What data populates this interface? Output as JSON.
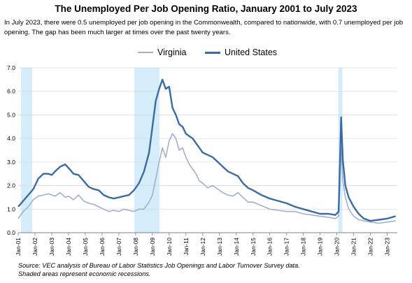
{
  "chart_data": {
    "type": "line",
    "title": "The Unemployed Per Job Opening Ratio, January 2001 to July 2023",
    "subtitle": "In July 2023, there were 0.5 unemployed per job opening in the Commonwealth, compared to nationwide, with 0.7 unemployed per job opening. The gap has been much larger at times over the past twenty years.",
    "footnote_lines": [
      "Source: VEC analysis of Bureau of Labor Statistics Job Openings and Labor Turnover Survey data.",
      "Shaded areas represent economic recessions."
    ],
    "ylim": [
      0,
      7
    ],
    "yticks": [
      "0.0",
      "1.0",
      "2.0",
      "3.0",
      "4.0",
      "5.0",
      "6.0",
      "7.0"
    ],
    "xlim": [
      2001.0,
      2023.6
    ],
    "xtick_labels": [
      "Jan-01",
      "Jan-02",
      "Jan-03",
      "Jan-04",
      "Jan-05",
      "Jan-06",
      "Jan-07",
      "Jan-08",
      "Jan-09",
      "Jan-10",
      "Jan-11",
      "Jan-12",
      "Jan-13",
      "Jan-14",
      "Jan-15",
      "Jan-16",
      "Jan-17",
      "Jan-18",
      "Jan-19",
      "Jan-20",
      "Jan-21",
      "Jan-22",
      "Jan-23"
    ],
    "recessions": [
      [
        2001.17,
        2001.83
      ],
      [
        2007.92,
        2009.42
      ],
      [
        2020.08,
        2020.33
      ]
    ],
    "grid": "horizontal",
    "legend_position": "top",
    "series": [
      {
        "name": "Virginia",
        "color": "#9fb0cf",
        "x": [
          2001.0,
          2001.3,
          2001.6,
          2001.9,
          2002.2,
          2002.5,
          2002.8,
          2003.0,
          2003.2,
          2003.5,
          2003.8,
          2004.0,
          2004.3,
          2004.6,
          2004.9,
          2005.2,
          2005.5,
          2005.8,
          2006.1,
          2006.4,
          2006.7,
          2007.0,
          2007.3,
          2007.6,
          2007.9,
          2008.2,
          2008.5,
          2008.8,
          2009.0,
          2009.2,
          2009.4,
          2009.6,
          2009.8,
          2010.0,
          2010.2,
          2010.4,
          2010.6,
          2010.8,
          2011.0,
          2011.2,
          2011.4,
          2011.6,
          2011.8,
          2012.0,
          2012.3,
          2012.6,
          2012.9,
          2013.2,
          2013.5,
          2013.8,
          2014.1,
          2014.4,
          2014.7,
          2015.0,
          2015.5,
          2016.0,
          2016.5,
          2017.0,
          2017.5,
          2018.0,
          2018.5,
          2019.0,
          2019.5,
          2019.9,
          2020.1,
          2020.25,
          2020.35,
          2020.5,
          2020.7,
          2021.0,
          2021.3,
          2021.6,
          2022.0,
          2022.5,
          2023.0,
          2023.5
        ],
        "values": [
          0.6,
          0.9,
          1.1,
          1.4,
          1.55,
          1.6,
          1.65,
          1.6,
          1.55,
          1.7,
          1.5,
          1.55,
          1.4,
          1.6,
          1.35,
          1.25,
          1.2,
          1.1,
          1.0,
          0.9,
          0.95,
          0.9,
          1.0,
          0.95,
          0.9,
          1.0,
          1.0,
          1.3,
          1.6,
          2.3,
          3.0,
          3.6,
          3.2,
          3.9,
          4.2,
          4.0,
          3.5,
          3.6,
          3.2,
          2.9,
          2.7,
          2.5,
          2.2,
          2.1,
          1.9,
          2.0,
          1.85,
          1.7,
          1.6,
          1.55,
          1.7,
          1.5,
          1.3,
          1.3,
          1.15,
          1.0,
          0.95,
          0.9,
          0.9,
          0.8,
          0.75,
          0.7,
          0.65,
          0.6,
          0.7,
          3.6,
          2.2,
          1.5,
          1.0,
          0.7,
          0.55,
          0.5,
          0.45,
          0.4,
          0.45,
          0.5
        ]
      },
      {
        "name": "United States",
        "color": "#3b6ba5",
        "x": [
          2001.0,
          2001.3,
          2001.6,
          2001.9,
          2002.2,
          2002.5,
          2002.8,
          2003.0,
          2003.2,
          2003.5,
          2003.8,
          2004.0,
          2004.3,
          2004.6,
          2004.9,
          2005.2,
          2005.5,
          2005.8,
          2006.1,
          2006.4,
          2006.7,
          2007.0,
          2007.3,
          2007.6,
          2007.9,
          2008.2,
          2008.5,
          2008.8,
          2009.0,
          2009.2,
          2009.4,
          2009.6,
          2009.8,
          2010.0,
          2010.2,
          2010.4,
          2010.6,
          2010.8,
          2011.0,
          2011.2,
          2011.4,
          2011.6,
          2011.8,
          2012.0,
          2012.3,
          2012.6,
          2012.9,
          2013.2,
          2013.5,
          2013.8,
          2014.1,
          2014.4,
          2014.7,
          2015.0,
          2015.5,
          2016.0,
          2016.5,
          2017.0,
          2017.5,
          2018.0,
          2018.5,
          2019.0,
          2019.5,
          2019.9,
          2020.1,
          2020.25,
          2020.35,
          2020.5,
          2020.7,
          2021.0,
          2021.3,
          2021.6,
          2022.0,
          2022.5,
          2023.0,
          2023.5
        ],
        "values": [
          1.1,
          1.35,
          1.6,
          1.85,
          2.3,
          2.5,
          2.5,
          2.45,
          2.6,
          2.8,
          2.9,
          2.75,
          2.5,
          2.45,
          2.2,
          1.95,
          1.85,
          1.8,
          1.6,
          1.5,
          1.45,
          1.5,
          1.55,
          1.6,
          1.8,
          2.1,
          2.6,
          3.4,
          4.5,
          5.6,
          6.1,
          6.5,
          6.1,
          6.2,
          5.3,
          5.0,
          4.6,
          4.5,
          4.2,
          4.1,
          4.0,
          3.8,
          3.6,
          3.4,
          3.3,
          3.2,
          3.0,
          2.8,
          2.6,
          2.5,
          2.4,
          2.1,
          1.9,
          1.8,
          1.6,
          1.45,
          1.35,
          1.25,
          1.1,
          1.0,
          0.9,
          0.8,
          0.8,
          0.75,
          0.9,
          4.9,
          3.1,
          2.0,
          1.5,
          1.1,
          0.8,
          0.6,
          0.5,
          0.55,
          0.6,
          0.7
        ]
      }
    ]
  }
}
